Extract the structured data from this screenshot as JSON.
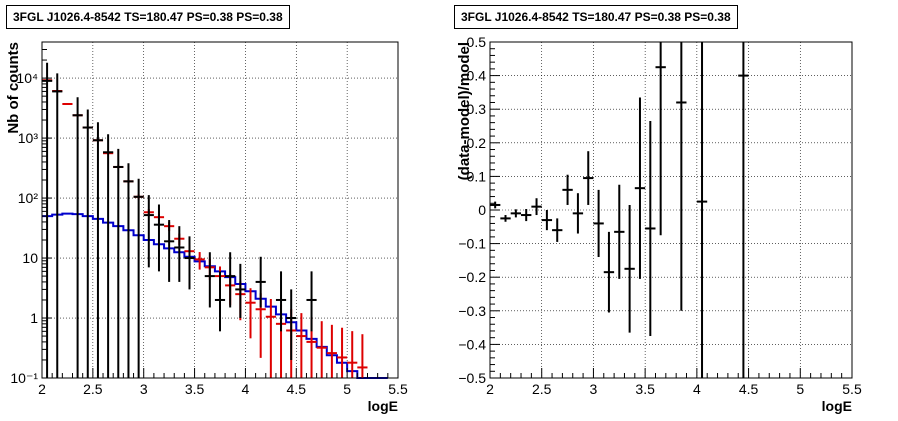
{
  "chart_data": [
    {
      "type": "scatter",
      "title": "3FGL J1026.4-8542 TS=180.47 PS=0.38 PS=0.38",
      "xlabel": "logE",
      "ylabel": "Nb of counts",
      "xlim": [
        2,
        5.5
      ],
      "ylim": [
        0.1,
        40000
      ],
      "ylog": true,
      "grid": true,
      "x_ticks": [
        "2",
        "2.5",
        "3",
        "3.5",
        "4",
        "4.5",
        "5",
        "5.5"
      ],
      "y_ticks": [
        "10⁻¹",
        "1",
        "10",
        "10²",
        "10³",
        "10⁴"
      ],
      "colors": {
        "data": "#000000",
        "model": "#dd0000",
        "background": "#0000cc"
      },
      "series": [
        {
          "role": "data",
          "x": [
            2.05,
            2.15,
            2.35,
            2.45,
            2.55,
            2.65,
            2.75,
            2.85,
            2.95,
            3.05,
            3.15,
            3.25,
            3.35,
            3.45,
            3.65,
            3.75,
            3.85,
            3.95,
            4.15,
            4.35,
            4.45,
            4.65
          ],
          "y": [
            9000,
            6000,
            2400,
            1500,
            920,
            580,
            330,
            190,
            105,
            52,
            36,
            19,
            15,
            10,
            5,
            2,
            5,
            3,
            4,
            2,
            1,
            2
          ],
          "yerr_lo": [
            9000,
            6000,
            2400,
            1500,
            920,
            580,
            330,
            190,
            105,
            45,
            30,
            15,
            11,
            7,
            3.5,
            1.4,
            3.5,
            2,
            2.5,
            1.4,
            0.8,
            1.4
          ],
          "yerr_hi": [
            9000,
            6000,
            2400,
            1500,
            920,
            580,
            330,
            190,
            105,
            60,
            42,
            24,
            19,
            13,
            7.5,
            4,
            7.5,
            5,
            6.5,
            4,
            2,
            4
          ]
        },
        {
          "role": "model",
          "x": [
            2.05,
            2.15,
            2.25,
            2.35,
            2.45,
            2.55,
            2.65,
            2.75,
            2.85,
            2.95,
            3.05,
            3.15,
            3.25,
            3.35,
            3.45,
            3.55,
            3.65,
            3.75,
            3.85,
            3.95,
            4.05,
            4.15,
            4.25,
            4.35,
            4.45,
            4.55,
            4.65,
            4.75,
            4.85,
            4.95,
            5.05,
            5.15
          ],
          "y": [
            9200,
            6100,
            3700,
            2400,
            1500,
            920,
            560,
            330,
            190,
            105,
            58,
            48,
            34,
            21,
            13,
            9.5,
            7,
            5,
            3.5,
            2.5,
            1.8,
            1.4,
            1.05,
            0.8,
            0.62,
            0.5,
            0.4,
            0.32,
            0.26,
            0.22,
            0.18,
            0.15
          ]
        },
        {
          "role": "background",
          "x": [
            2.0,
            2.1,
            2.2,
            2.3,
            2.4,
            2.5,
            2.6,
            2.7,
            2.8,
            2.9,
            3.0,
            3.1,
            3.2,
            3.3,
            3.4,
            3.5,
            3.6,
            3.7,
            3.8,
            3.9,
            4.0,
            4.1,
            4.2,
            4.3,
            4.4,
            4.5,
            4.6,
            4.7,
            4.8,
            4.9,
            5.0,
            5.1,
            5.2,
            5.3
          ],
          "y": [
            50,
            53,
            55,
            54,
            50,
            45,
            39,
            34,
            29,
            24,
            20,
            17,
            14.5,
            12.5,
            10.5,
            8.8,
            7.3,
            6.0,
            4.8,
            3.7,
            2.8,
            2.1,
            1.55,
            1.15,
            0.85,
            0.62,
            0.45,
            0.33,
            0.24,
            0.18,
            0.13,
            0.1,
            0.1,
            0.1
          ]
        }
      ]
    },
    {
      "type": "scatter",
      "title": "3FGL J1026.4-8542 TS=180.47 PS=0.38 PS=0.38",
      "xlabel": "logE",
      "ylabel": "(data-model)/model",
      "xlim": [
        2,
        5.5
      ],
      "ylim": [
        -0.5,
        0.5
      ],
      "grid": true,
      "x_ticks": [
        "2",
        "2.5",
        "3",
        "3.5",
        "4",
        "4.5",
        "5",
        "5.5"
      ],
      "y_ticks": [
        "−0.5",
        "−0.4",
        "−0.3",
        "−0.2",
        "−0.1",
        "0",
        "0.1",
        "0.2",
        "0.3",
        "0.4",
        "0.5"
      ],
      "series": [
        {
          "role": "residual",
          "x": [
            2.05,
            2.15,
            2.25,
            2.35,
            2.45,
            2.55,
            2.65,
            2.75,
            2.85,
            2.95,
            3.05,
            3.15,
            3.25,
            3.35,
            3.45,
            3.55,
            3.65,
            3.85,
            4.05,
            4.45
          ],
          "y": [
            0.015,
            -0.025,
            -0.01,
            -0.015,
            0.01,
            -0.03,
            -0.06,
            0.06,
            -0.01,
            0.095,
            -0.04,
            -0.185,
            -0.065,
            -0.175,
            0.065,
            -0.055,
            0.425,
            0.32,
            0.025,
            0.4
          ],
          "yerr": [
            0.01,
            0.01,
            0.012,
            0.018,
            0.025,
            0.03,
            0.035,
            0.045,
            0.06,
            0.08,
            0.1,
            0.12,
            0.14,
            0.19,
            0.27,
            0.32,
            0.5,
            0.62,
            0.9,
            1.2
          ]
        }
      ]
    }
  ]
}
